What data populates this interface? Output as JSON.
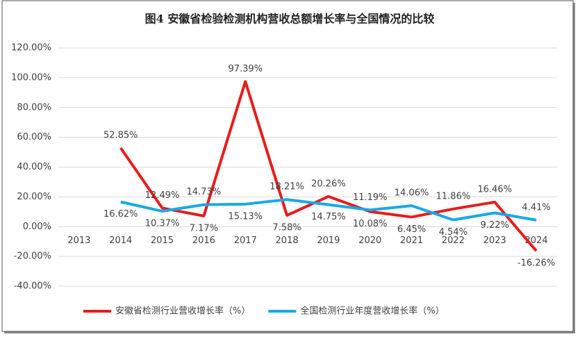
{
  "chart_data": {
    "type": "line",
    "title": "图4  安徽省检验检测机构营收总额增长率与全国情况的比较",
    "categories": [
      "2013",
      "2014",
      "2015",
      "2016",
      "2017",
      "2018",
      "2019",
      "2020",
      "2021",
      "2022",
      "2023",
      "2024"
    ],
    "series": [
      {
        "name": "安徽省检测行业营收增长率（%）",
        "color": "#e81c1c",
        "values": [
          null,
          52.85,
          12.49,
          7.17,
          97.39,
          7.58,
          20.26,
          10.08,
          6.45,
          11.86,
          16.46,
          -16.26
        ],
        "value_labels": [
          null,
          "52.85%",
          "12.49%",
          "7.17%",
          "97.39%",
          "7.58%",
          "20.26%",
          "10.08%",
          "6.45%",
          "11.86%",
          "16.46%",
          "-16.26%"
        ]
      },
      {
        "name": "全国检测行业年度营收增长率（%）",
        "color": "#17a9e8",
        "values": [
          null,
          16.62,
          10.37,
          14.73,
          15.13,
          18.21,
          14.75,
          11.19,
          14.06,
          4.54,
          9.22,
          4.41
        ],
        "value_labels": [
          null,
          "16.62%",
          "10.37%",
          "14.73%",
          "15.13%",
          "18.21%",
          "14.75%",
          "11.19%",
          "14.06%",
          "4.54%",
          "9.22%",
          "4.41%"
        ]
      }
    ],
    "ylim": [
      -40,
      120
    ],
    "yticks": [
      {
        "value": -40,
        "label": "-40.00%"
      },
      {
        "value": -20,
        "label": "-20.00%"
      },
      {
        "value": 0,
        "label": "0.00%"
      },
      {
        "value": 20,
        "label": "20.00%"
      },
      {
        "value": 40,
        "label": "40.00%"
      },
      {
        "value": 60,
        "label": "60.00%"
      },
      {
        "value": 80,
        "label": "80.00%"
      },
      {
        "value": 100,
        "label": "100.00%"
      },
      {
        "value": 120,
        "label": "120.00%"
      }
    ],
    "grid": true,
    "legend": "bottom"
  }
}
